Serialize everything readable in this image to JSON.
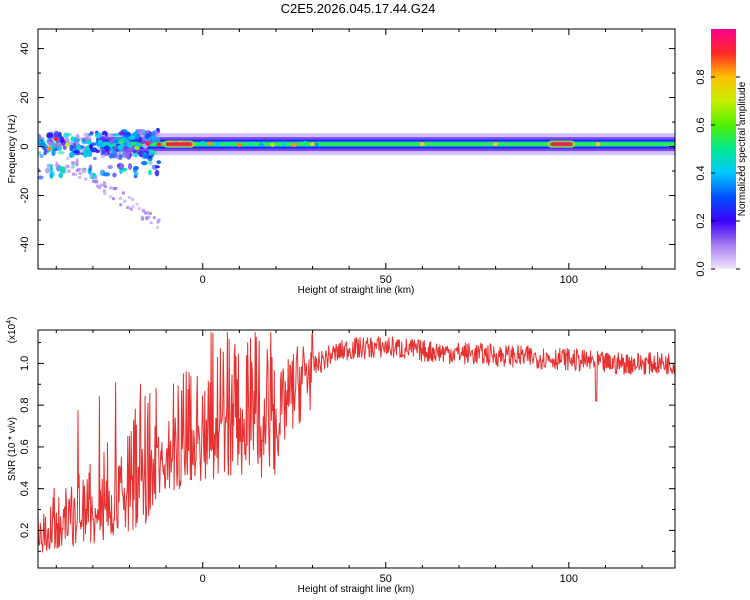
{
  "title": "C2E5.2026.045.17.44.G24",
  "chart_data": [
    {
      "type": "heatmap",
      "xlabel": "Height of straight line (km)",
      "ylabel": "Frequency (Hz)",
      "xlim": [
        -45,
        129
      ],
      "ylim": [
        -50,
        48
      ],
      "x_ticks": [
        0,
        50,
        100
      ],
      "y_ticks": [
        -40,
        -20,
        0,
        20,
        40
      ],
      "colorbar": {
        "label": "Normalized spectral amplitude",
        "range": [
          0.0,
          1.0
        ],
        "ticks": [
          0.0,
          0.2,
          0.4,
          0.6,
          0.8
        ],
        "colormap": [
          "#f0e4f8",
          "#a47cf0",
          "#3c00f8",
          "#0050ff",
          "#00c8ff",
          "#00e890",
          "#50f000",
          "#c8f000",
          "#ffc000",
          "#ff2828",
          "#ff0090"
        ]
      },
      "ridge": {
        "frequency_hz": 1,
        "x_range": [
          -45,
          129
        ],
        "peak_amplitude": 1.0
      }
    },
    {
      "type": "line",
      "xlabel": "Height of straight line (km)",
      "ylabel": "SNR (10 * v/v)",
      "multiplier": "(x10",
      "multiplier_exp": "4",
      "xlim": [
        -45,
        129
      ],
      "ylim": [
        0.02,
        1.16
      ],
      "x_ticks": [
        0,
        50,
        100
      ],
      "y_ticks": [
        0.2,
        0.4,
        0.6,
        0.8,
        1.0
      ],
      "series": [
        {
          "color": "#e83030",
          "profile_x": [
            -45,
            -30,
            -20,
            -10,
            0,
            10,
            20,
            25,
            30,
            35,
            40,
            50,
            60,
            80,
            100,
            110,
            129
          ],
          "profile_y": [
            0.2,
            0.3,
            0.43,
            0.6,
            0.68,
            0.75,
            0.72,
            0.88,
            0.98,
            1.04,
            1.07,
            1.08,
            1.06,
            1.04,
            1.02,
            1.0,
            1.0
          ]
        }
      ]
    }
  ],
  "tick_labels": {
    "x": [
      "0",
      "50",
      "100"
    ],
    "freq": [
      "-40",
      "-20",
      "0",
      "20",
      "40"
    ],
    "colorbar": [
      "0.0",
      "0.2",
      "0.4",
      "0.6",
      "0.8"
    ],
    "snr": [
      "0.2",
      "0.4",
      "0.6",
      "0.8",
      "1.0"
    ]
  }
}
